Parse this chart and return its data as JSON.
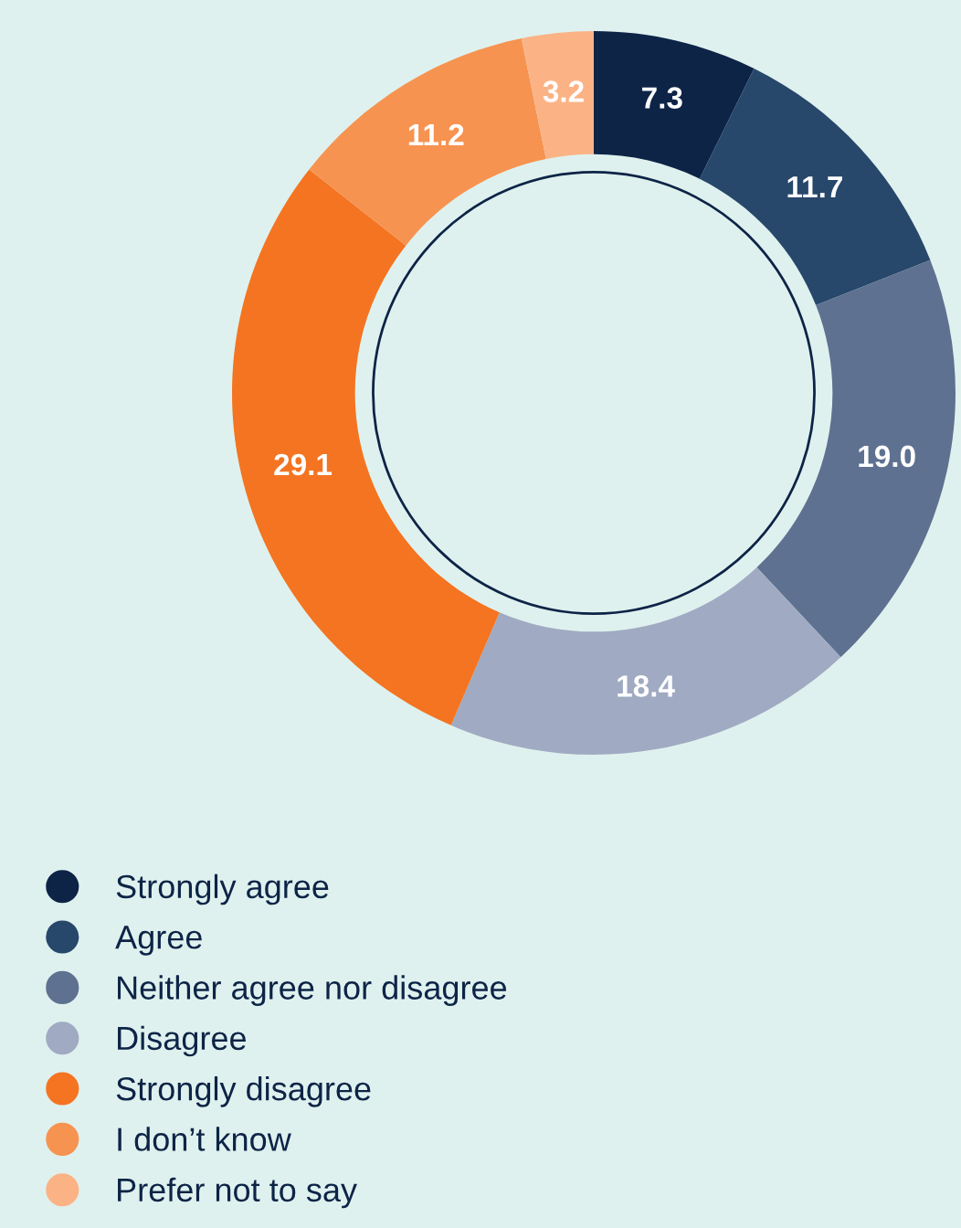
{
  "chart_data": {
    "type": "donut",
    "categories": [
      "Strongly agree",
      "Agree",
      "Neither agree nor disagree",
      "Disagree",
      "Strongly disagree",
      "I don’t know",
      "Prefer not to say"
    ],
    "values": [
      7.3,
      11.7,
      19.0,
      18.4,
      29.1,
      11.2,
      3.2
    ],
    "colors": [
      "#0d2447",
      "#27476b",
      "#5e7190",
      "#a0aac2",
      "#f47421",
      "#f79350",
      "#fbb386"
    ],
    "value_labels": [
      "7.3",
      "11.7",
      "19.0",
      "18.4",
      "29.1",
      "11.2",
      "3.2"
    ],
    "legend": "bottom left"
  }
}
